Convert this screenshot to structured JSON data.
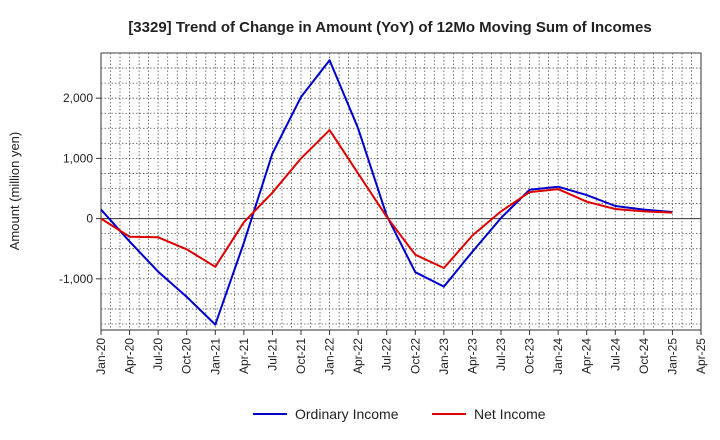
{
  "chart_data": {
    "type": "line",
    "title": "[3329]  Trend of Change in Amount (YoY) of 12Mo Moving Sum of Incomes",
    "xlabel": "",
    "ylabel": "Amount (million yen)",
    "ylim": [
      -1850,
      2750
    ],
    "yticks": [
      2000,
      1000,
      0,
      -1000
    ],
    "ytick_labels": [
      "2,000",
      "1,000",
      "0",
      "-1,000"
    ],
    "grid": true,
    "legend_position": "bottom-center",
    "x_ticks": [
      "Jan-20",
      "Apr-20",
      "Jul-20",
      "Oct-20",
      "Jan-21",
      "Apr-21",
      "Jul-21",
      "Oct-21",
      "Jan-22",
      "Apr-22",
      "Jul-22",
      "Oct-22",
      "Jan-23",
      "Apr-23",
      "Jul-23",
      "Oct-23",
      "Jan-24",
      "Apr-24",
      "Jul-24",
      "Oct-24",
      "Jan-25",
      "Apr-25"
    ],
    "x": [
      "Jan-20",
      "Apr-20",
      "Jul-20",
      "Oct-20",
      "Jan-21",
      "Apr-21",
      "Jul-21",
      "Oct-21",
      "Jan-22",
      "Apr-22",
      "Jul-22",
      "Oct-22",
      "Jan-23",
      "Apr-23",
      "Jul-23",
      "Oct-23",
      "Jan-24",
      "Apr-24",
      "Jul-24",
      "Oct-24",
      "Jan-25"
    ],
    "series": [
      {
        "name": "Ordinary Income",
        "color": "#0000cc",
        "values": [
          150,
          -380,
          -880,
          -1300,
          -1760,
          -400,
          1080,
          2020,
          2630,
          1500,
          50,
          -890,
          -1130,
          -550,
          10,
          480,
          530,
          390,
          210,
          150,
          110
        ]
      },
      {
        "name": "Net Income",
        "color": "#dd0000",
        "values": [
          0,
          -300,
          -310,
          -510,
          -800,
          -60,
          430,
          1000,
          1470,
          750,
          30,
          -600,
          -820,
          -280,
          120,
          440,
          490,
          280,
          160,
          120,
          100
        ]
      }
    ]
  }
}
